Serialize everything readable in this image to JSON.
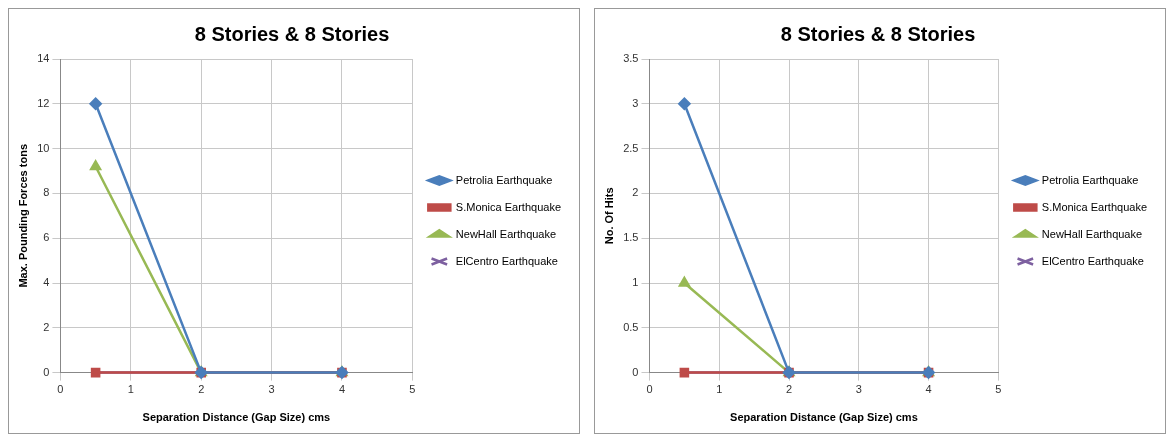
{
  "chart_data": [
    {
      "type": "line",
      "title": "8 Stories & 8 Stories",
      "xlabel": "Separation Distance (Gap Size) cms",
      "ylabel": "Max. Pounding Forces tons",
      "x": [
        0.5,
        2,
        4
      ],
      "xlim": [
        0,
        5
      ],
      "xticks": [
        0,
        1,
        2,
        3,
        4,
        5
      ],
      "ylim": [
        0,
        14
      ],
      "yticks": [
        0,
        2,
        4,
        6,
        8,
        10,
        12,
        14
      ],
      "grid": true,
      "legend": "right",
      "series": [
        {
          "name": "Petrolia Earthquake",
          "color": "#4a7ebb",
          "marker": "diamond",
          "values": [
            12,
            0,
            0
          ]
        },
        {
          "name": "S.Monica Earthquake",
          "color": "#be4b48",
          "marker": "square",
          "values": [
            0,
            0,
            0
          ]
        },
        {
          "name": "NewHall Earthquake",
          "color": "#98b954",
          "marker": "triangle",
          "values": [
            9.2,
            0,
            0
          ]
        },
        {
          "name": "ElCentro Earthquake",
          "color": "#7d60a0",
          "marker": "cross",
          "values": [
            0,
            0,
            0
          ]
        }
      ]
    },
    {
      "type": "line",
      "title": "8 Stories & 8 Stories",
      "xlabel": "Separation Distance (Gap Size) cms",
      "ylabel": "No. Of Hits",
      "x": [
        0.5,
        2,
        4
      ],
      "xlim": [
        0,
        5
      ],
      "xticks": [
        0,
        1,
        2,
        3,
        4,
        5
      ],
      "ylim": [
        0,
        3.5
      ],
      "yticks": [
        0,
        0.5,
        1,
        1.5,
        2,
        2.5,
        3,
        3.5
      ],
      "grid": true,
      "legend": "right",
      "series": [
        {
          "name": "Petrolia Earthquake",
          "color": "#4a7ebb",
          "marker": "diamond",
          "values": [
            3,
            0,
            0
          ]
        },
        {
          "name": "S.Monica Earthquake",
          "color": "#be4b48",
          "marker": "square",
          "values": [
            0,
            0,
            0
          ]
        },
        {
          "name": "NewHall Earthquake",
          "color": "#98b954",
          "marker": "triangle",
          "values": [
            1,
            0,
            0
          ]
        },
        {
          "name": "ElCentro Earthquake",
          "color": "#7d60a0",
          "marker": "cross",
          "values": [
            0,
            0,
            0
          ]
        }
      ]
    }
  ]
}
